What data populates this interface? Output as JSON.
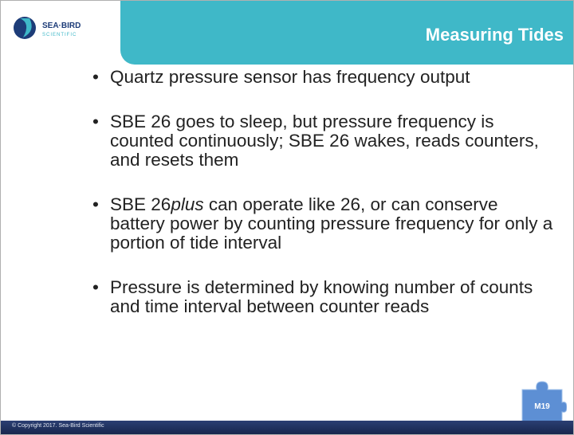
{
  "logo": {
    "name": "SEA·BIRD",
    "sub": "SCIENTIFIC"
  },
  "header": {
    "title": "Measuring Tides"
  },
  "bullets": [
    [
      {
        "text": "Quartz pressure sensor has frequency output"
      }
    ],
    [
      {
        "text": "SBE 26 goes to sleep, but pressure frequency is counted continuously; SBE 26 wakes, reads counters, and resets them"
      }
    ],
    [
      {
        "text": "SBE 26"
      },
      {
        "text": "plus",
        "italic": true
      },
      {
        "text": " can operate like 26, or can conserve battery power by counting pressure frequency for only a portion of tide interval"
      }
    ],
    [
      {
        "text": "Pressure is determined by knowing number of counts and time interval between counter reads"
      }
    ]
  ],
  "footer": {
    "copyright": "© Copyright 2017. Sea-Bird Scientific",
    "badge": "M19"
  }
}
